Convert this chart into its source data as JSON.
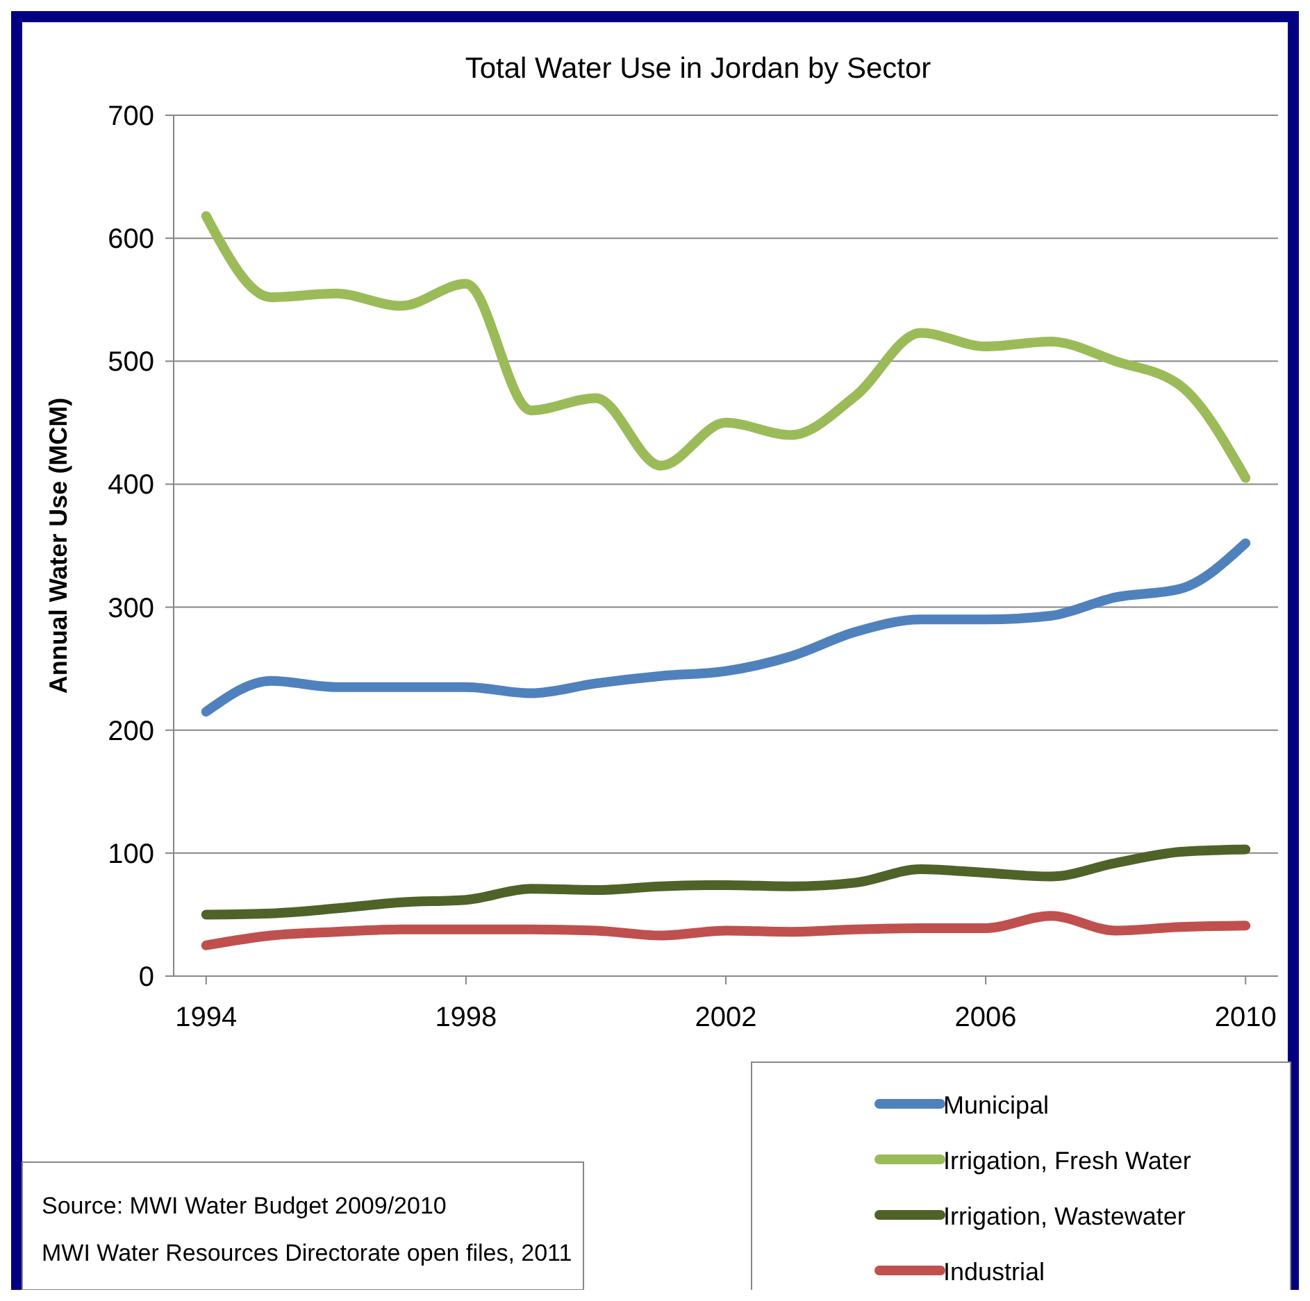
{
  "chart_data": {
    "type": "line",
    "title": "Total Water Use in Jordan by Sector",
    "ylabel": "Annual Water Use (MCM)",
    "x": [
      1994,
      1995,
      1996,
      1997,
      1998,
      1999,
      2000,
      2001,
      2002,
      2003,
      2004,
      2005,
      2006,
      2007,
      2008,
      2009,
      2010
    ],
    "xlim": [
      1993.5,
      2010.5
    ],
    "xticks": [
      1994,
      1998,
      2002,
      2006,
      2010
    ],
    "ylim": [
      0,
      700
    ],
    "yticks": [
      0,
      100,
      200,
      300,
      400,
      500,
      600,
      700
    ],
    "grid": "y",
    "legend": "bottom right",
    "marker": "none",
    "series": [
      {
        "name": "Municipal",
        "color": "#4f81bd",
        "values": [
          215,
          240,
          235,
          235,
          235,
          230,
          238,
          244,
          248,
          260,
          280,
          290,
          290,
          293,
          308,
          315,
          352
        ]
      },
      {
        "name": "Irrigation, Fresh Water",
        "color": "#9bbb59",
        "values": [
          618,
          552,
          555,
          545,
          563,
          460,
          470,
          415,
          450,
          440,
          472,
          523,
          512,
          516,
          500,
          480,
          405
        ]
      },
      {
        "name": "Irrigation, Wastewater",
        "color": "#4f6228",
        "values": [
          50,
          51,
          55,
          60,
          62,
          71,
          70,
          73,
          74,
          73,
          76,
          87,
          84,
          81,
          92,
          101,
          103
        ]
      },
      {
        "name": "Industrial",
        "color": "#c0504d",
        "values": [
          25,
          33,
          36,
          38,
          38,
          38,
          37,
          33,
          37,
          36,
          38,
          39,
          39,
          49,
          37,
          40,
          41
        ]
      }
    ],
    "annotations": [
      "Source: MWI Water Budget 2009/2010",
      "MWI Water Resources Directorate open files, 2011"
    ]
  }
}
